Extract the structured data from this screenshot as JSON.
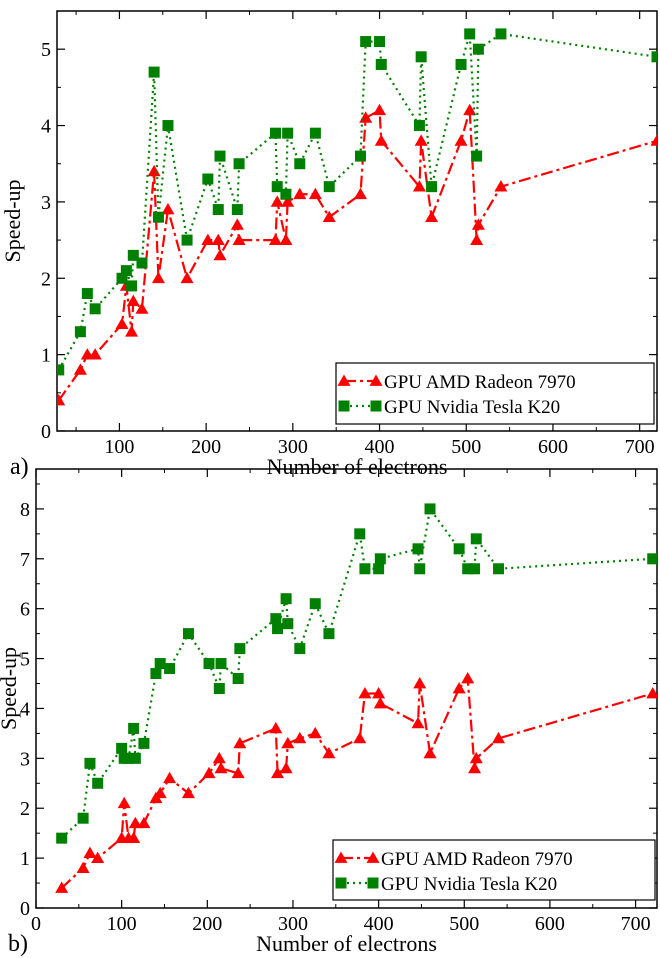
{
  "chart_data": [
    {
      "type": "line",
      "panel_label": "a)",
      "xlabel": "Number of electrons",
      "ylabel": "Speed-up",
      "xlim": [
        28,
        720
      ],
      "ylim": [
        0,
        5.5
      ],
      "xticks": [
        100,
        200,
        300,
        400,
        500,
        600,
        700
      ],
      "yticks": [
        0,
        1,
        2,
        3,
        4,
        5
      ],
      "xtick_labels": [
        "100",
        "200",
        "300",
        "400",
        "500",
        "600",
        "700"
      ],
      "ytick_labels": [
        "0",
        "1",
        "2",
        "3",
        "4",
        "5"
      ],
      "legend_position": "bottom-right",
      "series": [
        {
          "name": "GPU AMD Radeon 7970",
          "color": "#ff0000",
          "marker": "triangle",
          "line_style": "dash-dot",
          "x": [
            30,
            55,
            63,
            72,
            103,
            108,
            114,
            116,
            126,
            140,
            145,
            156,
            178,
            202,
            214,
            216,
            236,
            238,
            280,
            282,
            292,
            294,
            308,
            326,
            342,
            378,
            384,
            400,
            402,
            446,
            448,
            460,
            494,
            504,
            512,
            514,
            540,
            720
          ],
          "y": [
            0.4,
            0.8,
            1.0,
            1.0,
            1.4,
            1.9,
            1.3,
            1.7,
            1.6,
            3.4,
            2.0,
            2.9,
            2.0,
            2.5,
            2.5,
            2.3,
            2.7,
            2.5,
            2.5,
            3.0,
            2.5,
            3.0,
            3.1,
            3.1,
            2.8,
            3.1,
            4.1,
            4.2,
            3.8,
            3.2,
            3.8,
            2.8,
            3.8,
            4.2,
            2.5,
            2.7,
            3.2,
            3.8
          ]
        },
        {
          "name": "GPU Nvidia Tesla K20",
          "color": "#008000",
          "marker": "square",
          "line_style": "dotted",
          "x": [
            30,
            55,
            63,
            72,
            103,
            108,
            114,
            116,
            126,
            140,
            145,
            156,
            178,
            202,
            214,
            216,
            236,
            238,
            280,
            282,
            292,
            294,
            308,
            326,
            342,
            378,
            384,
            400,
            402,
            446,
            448,
            460,
            494,
            504,
            512,
            514,
            540,
            720
          ],
          "y": [
            0.8,
            1.3,
            1.8,
            1.6,
            2.0,
            2.1,
            1.9,
            2.3,
            2.2,
            4.7,
            2.8,
            4.0,
            2.5,
            3.3,
            2.9,
            3.6,
            2.9,
            3.5,
            3.9,
            3.2,
            3.1,
            3.9,
            3.5,
            3.9,
            3.2,
            3.6,
            5.1,
            5.1,
            4.8,
            4.0,
            4.9,
            3.2,
            4.8,
            5.2,
            3.6,
            5.0,
            5.2,
            4.9
          ]
        }
      ]
    },
    {
      "type": "line",
      "panel_label": "b)",
      "xlabel": "Number of electrons",
      "ylabel": "Speed-up",
      "xlim": [
        0,
        725
      ],
      "ylim": [
        0,
        8.8
      ],
      "xticks": [
        0,
        100,
        200,
        300,
        400,
        500,
        600,
        700
      ],
      "yticks": [
        0,
        1,
        2,
        3,
        4,
        5,
        6,
        7,
        8
      ],
      "xtick_labels": [
        "0",
        "100",
        "200",
        "300",
        "400",
        "500",
        "600",
        "700"
      ],
      "ytick_labels": [
        "0",
        "1",
        "2",
        "3",
        "4",
        "5",
        "6",
        "7",
        "8"
      ],
      "legend_position": "bottom-right",
      "series": [
        {
          "name": "GPU AMD Radeon 7970",
          "color": "#ff0000",
          "marker": "triangle",
          "line_style": "dash-dot",
          "x": [
            30,
            55,
            63,
            72,
            100,
            103,
            108,
            114,
            116,
            126,
            140,
            145,
            156,
            178,
            202,
            214,
            216,
            236,
            238,
            280,
            282,
            292,
            294,
            308,
            326,
            342,
            378,
            384,
            400,
            402,
            446,
            448,
            460,
            494,
            504,
            512,
            514,
            540,
            720
          ],
          "y": [
            0.4,
            0.8,
            1.1,
            1.0,
            1.4,
            2.1,
            1.4,
            1.4,
            1.7,
            1.7,
            2.2,
            2.3,
            2.6,
            2.3,
            2.7,
            3.0,
            2.8,
            2.7,
            3.3,
            3.6,
            2.7,
            2.8,
            3.3,
            3.4,
            3.5,
            3.1,
            3.4,
            4.3,
            4.3,
            4.1,
            3.7,
            4.5,
            3.1,
            4.4,
            4.6,
            2.8,
            3.0,
            3.4,
            4.3
          ]
        },
        {
          "name": "GPU Nvidia Tesla K20",
          "color": "#008000",
          "marker": "square",
          "line_style": "dotted",
          "x": [
            30,
            55,
            63,
            72,
            100,
            103,
            108,
            114,
            116,
            126,
            140,
            145,
            156,
            178,
            202,
            214,
            216,
            236,
            238,
            280,
            282,
            292,
            294,
            308,
            326,
            342,
            378,
            384,
            400,
            402,
            446,
            448,
            460,
            494,
            504,
            512,
            514,
            540,
            720
          ],
          "y": [
            1.4,
            1.8,
            2.9,
            2.5,
            3.2,
            3.0,
            3.0,
            3.6,
            3.0,
            3.3,
            4.7,
            4.9,
            4.8,
            5.5,
            4.9,
            4.4,
            4.9,
            4.6,
            5.2,
            5.8,
            5.6,
            6.2,
            5.7,
            5.2,
            6.1,
            5.5,
            7.5,
            6.8,
            6.8,
            7.0,
            7.2,
            6.8,
            8.0,
            7.2,
            6.8,
            6.8,
            7.4,
            6.8,
            7.0
          ]
        }
      ]
    }
  ]
}
